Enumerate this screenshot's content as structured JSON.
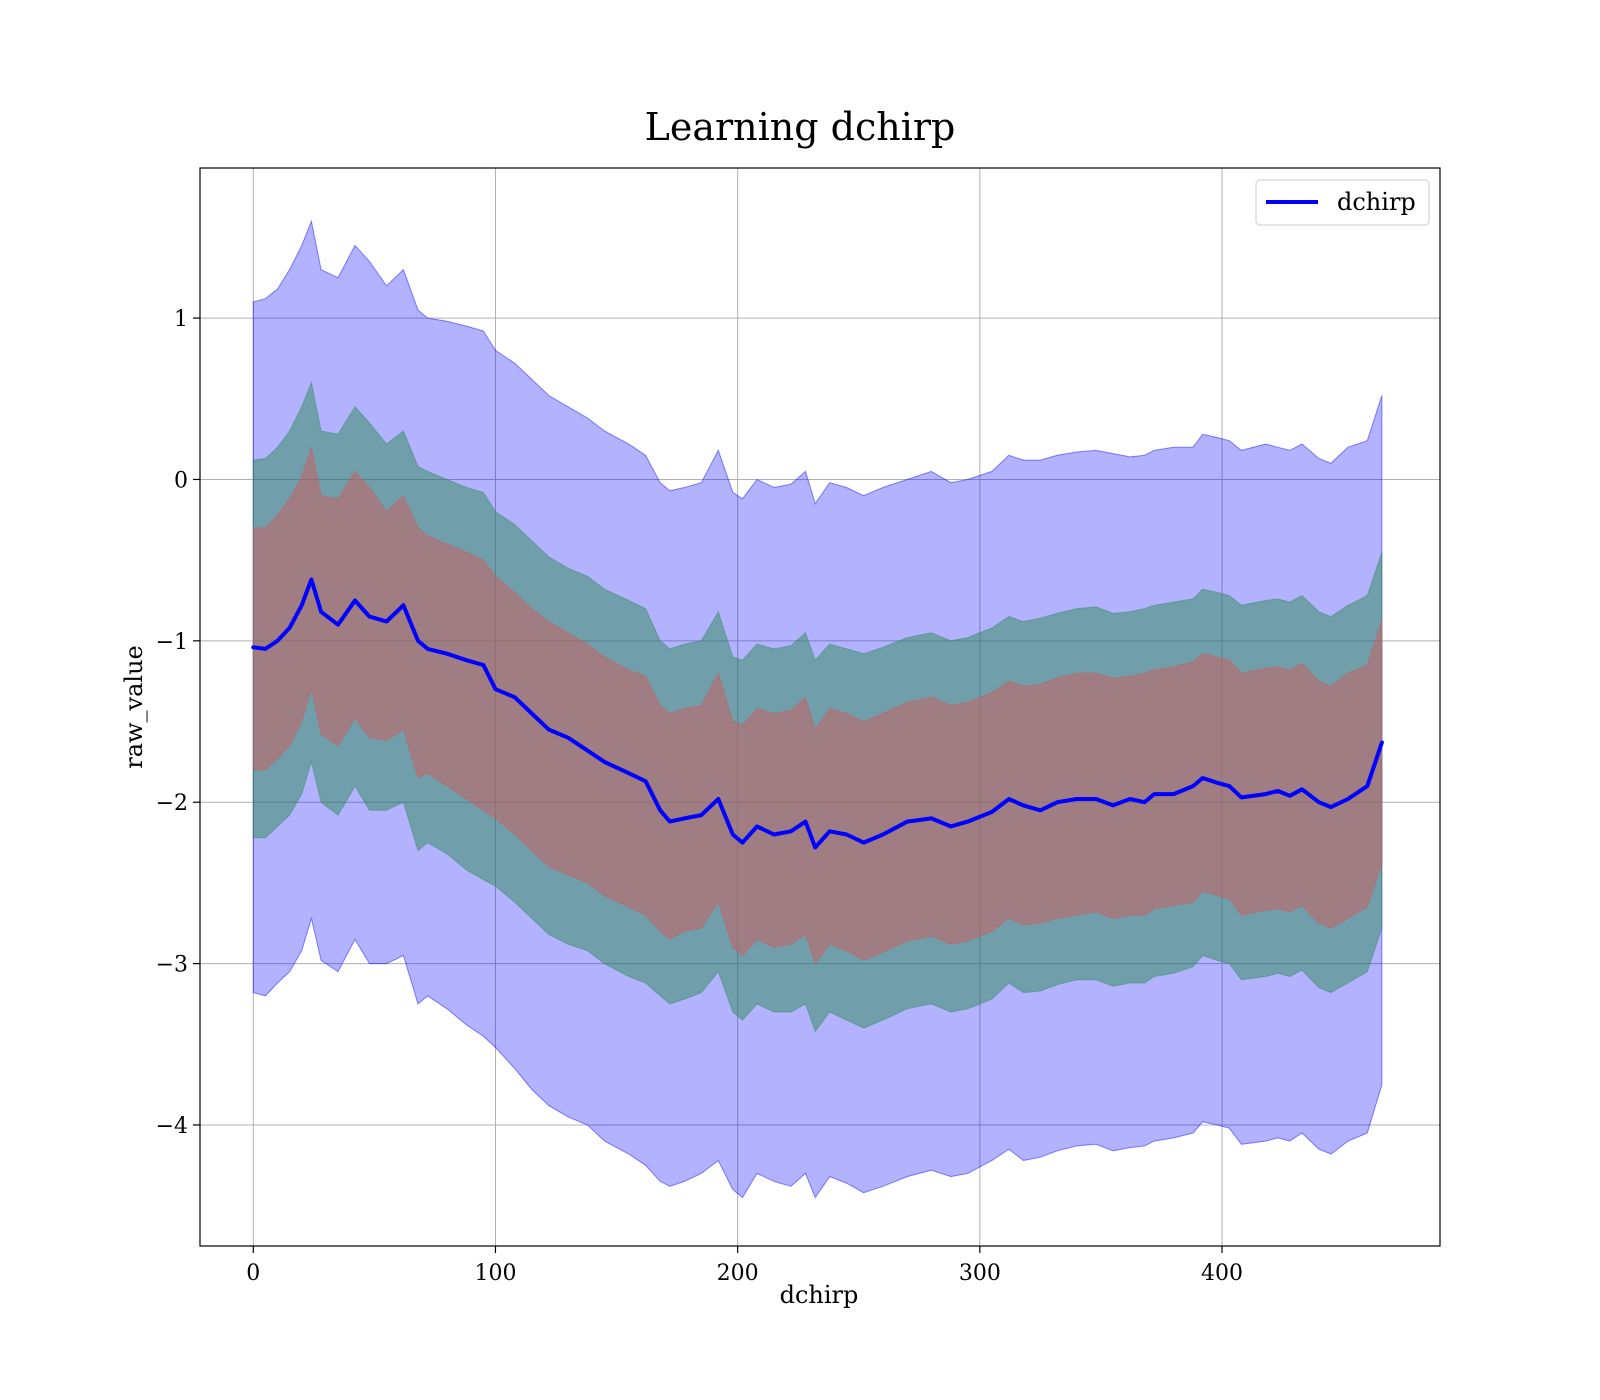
{
  "chart_data": {
    "type": "line",
    "title": "Learning dchirp",
    "xlabel": "dchirp",
    "ylabel": "raw_value",
    "xlim": [
      -22,
      490
    ],
    "ylim": [
      -4.75,
      1.93
    ],
    "grid": true,
    "legend_position": "top-right",
    "x_ticks": [
      0,
      100,
      200,
      300,
      400
    ],
    "x_tick_labels": [
      "0",
      "100",
      "200",
      "300",
      "400"
    ],
    "y_ticks": [
      1,
      0,
      -1,
      -2,
      -3,
      -4
    ],
    "y_tick_labels": [
      "1",
      "0",
      "−1",
      "−2",
      "−3",
      "−4"
    ],
    "colors": {
      "mean_line": "#0000ff",
      "band_outer": "#0000ff",
      "band_middle": "#2e8b57",
      "band_inner": "#cd5c5c"
    },
    "series": [
      {
        "name": "dchirp",
        "style": "mean line",
        "x": [
          0,
          5,
          10,
          15,
          20,
          24,
          28,
          35,
          42,
          48,
          55,
          62,
          68,
          72,
          80,
          88,
          95,
          100,
          108,
          115,
          122,
          130,
          138,
          145,
          155,
          162,
          168,
          172,
          178,
          185,
          192,
          198,
          202,
          208,
          215,
          222,
          228,
          232,
          238,
          245,
          252,
          260,
          270,
          280,
          288,
          295,
          305,
          312,
          318,
          325,
          332,
          340,
          348,
          355,
          362,
          368,
          372,
          380,
          388,
          392,
          398,
          403,
          408,
          418,
          423,
          428,
          433,
          440,
          445,
          452,
          460,
          466
        ],
        "y": [
          -1.04,
          -1.05,
          -1.0,
          -0.92,
          -0.78,
          -0.62,
          -0.82,
          -0.9,
          -0.75,
          -0.85,
          -0.88,
          -0.78,
          -1.0,
          -1.05,
          -1.08,
          -1.12,
          -1.15,
          -1.3,
          -1.35,
          -1.45,
          -1.55,
          -1.6,
          -1.68,
          -1.75,
          -1.82,
          -1.87,
          -2.05,
          -2.12,
          -2.1,
          -2.08,
          -1.98,
          -2.2,
          -2.25,
          -2.15,
          -2.2,
          -2.18,
          -2.12,
          -2.28,
          -2.18,
          -2.2,
          -2.25,
          -2.2,
          -2.12,
          -2.1,
          -2.15,
          -2.12,
          -2.06,
          -1.98,
          -2.02,
          -2.05,
          -2.0,
          -1.98,
          -1.98,
          -2.02,
          -1.98,
          -2.0,
          -1.95,
          -1.95,
          -1.9,
          -1.85,
          -1.88,
          -1.9,
          -1.97,
          -1.95,
          -1.93,
          -1.96,
          -1.92,
          -2.0,
          -2.03,
          -1.98,
          -1.9,
          -1.63
        ]
      },
      {
        "style": "band outer",
        "x": [
          0,
          5,
          10,
          15,
          20,
          24,
          28,
          35,
          42,
          48,
          55,
          62,
          68,
          72,
          80,
          88,
          95,
          100,
          108,
          115,
          122,
          130,
          138,
          145,
          155,
          162,
          168,
          172,
          178,
          185,
          192,
          198,
          202,
          208,
          215,
          222,
          228,
          232,
          238,
          245,
          252,
          260,
          270,
          280,
          288,
          295,
          305,
          312,
          318,
          325,
          332,
          340,
          348,
          355,
          362,
          368,
          372,
          380,
          388,
          392,
          398,
          403,
          408,
          418,
          423,
          428,
          433,
          440,
          445,
          452,
          460,
          466
        ],
        "upper": [
          1.1,
          1.12,
          1.18,
          1.3,
          1.45,
          1.6,
          1.3,
          1.25,
          1.45,
          1.35,
          1.2,
          1.3,
          1.05,
          1.0,
          0.98,
          0.95,
          0.92,
          0.8,
          0.72,
          0.62,
          0.52,
          0.45,
          0.38,
          0.3,
          0.22,
          0.15,
          -0.02,
          -0.07,
          -0.05,
          -0.02,
          0.18,
          -0.08,
          -0.12,
          0.0,
          -0.05,
          -0.03,
          0.05,
          -0.15,
          -0.02,
          -0.05,
          -0.1,
          -0.05,
          0.0,
          0.05,
          -0.02,
          0.0,
          0.05,
          0.15,
          0.12,
          0.12,
          0.15,
          0.17,
          0.18,
          0.16,
          0.14,
          0.15,
          0.18,
          0.2,
          0.2,
          0.28,
          0.26,
          0.24,
          0.18,
          0.22,
          0.2,
          0.18,
          0.22,
          0.13,
          0.1,
          0.2,
          0.24,
          0.52
        ],
        "lower": [
          -3.18,
          -3.2,
          -3.12,
          -3.05,
          -2.92,
          -2.72,
          -2.98,
          -3.05,
          -2.85,
          -3.0,
          -3.0,
          -2.95,
          -3.25,
          -3.2,
          -3.28,
          -3.38,
          -3.45,
          -3.52,
          -3.65,
          -3.78,
          -3.88,
          -3.95,
          -4.0,
          -4.1,
          -4.18,
          -4.25,
          -4.35,
          -4.38,
          -4.35,
          -4.3,
          -4.22,
          -4.4,
          -4.45,
          -4.3,
          -4.35,
          -4.38,
          -4.3,
          -4.45,
          -4.32,
          -4.36,
          -4.42,
          -4.38,
          -4.32,
          -4.28,
          -4.32,
          -4.3,
          -4.22,
          -4.15,
          -4.22,
          -4.2,
          -4.16,
          -4.13,
          -4.12,
          -4.16,
          -4.14,
          -4.13,
          -4.1,
          -4.08,
          -4.05,
          -3.98,
          -4.0,
          -4.02,
          -4.12,
          -4.1,
          -4.08,
          -4.1,
          -4.05,
          -4.15,
          -4.18,
          -4.1,
          -4.05,
          -3.75
        ]
      },
      {
        "style": "band middle",
        "x": [
          0,
          5,
          10,
          15,
          20,
          24,
          28,
          35,
          42,
          48,
          55,
          62,
          68,
          72,
          80,
          88,
          95,
          100,
          108,
          115,
          122,
          130,
          138,
          145,
          155,
          162,
          168,
          172,
          178,
          185,
          192,
          198,
          202,
          208,
          215,
          222,
          228,
          232,
          238,
          245,
          252,
          260,
          270,
          280,
          288,
          295,
          305,
          312,
          318,
          325,
          332,
          340,
          348,
          355,
          362,
          368,
          372,
          380,
          388,
          392,
          398,
          403,
          408,
          418,
          423,
          428,
          433,
          440,
          445,
          452,
          460,
          466
        ],
        "upper": [
          0.12,
          0.13,
          0.2,
          0.3,
          0.45,
          0.6,
          0.3,
          0.28,
          0.45,
          0.35,
          0.22,
          0.3,
          0.08,
          0.05,
          0.0,
          -0.05,
          -0.08,
          -0.2,
          -0.28,
          -0.38,
          -0.48,
          -0.55,
          -0.6,
          -0.68,
          -0.75,
          -0.8,
          -1.0,
          -1.05,
          -1.02,
          -1.0,
          -0.82,
          -1.1,
          -1.12,
          -1.02,
          -1.05,
          -1.03,
          -0.95,
          -1.12,
          -1.02,
          -1.05,
          -1.08,
          -1.04,
          -0.98,
          -0.95,
          -1.0,
          -0.98,
          -0.92,
          -0.85,
          -0.88,
          -0.86,
          -0.83,
          -0.8,
          -0.79,
          -0.83,
          -0.82,
          -0.8,
          -0.78,
          -0.76,
          -0.74,
          -0.68,
          -0.7,
          -0.72,
          -0.78,
          -0.75,
          -0.74,
          -0.76,
          -0.72,
          -0.82,
          -0.85,
          -0.78,
          -0.72,
          -0.45
        ],
        "lower": [
          -2.22,
          -2.22,
          -2.15,
          -2.08,
          -1.95,
          -1.75,
          -2.0,
          -2.08,
          -1.9,
          -2.05,
          -2.05,
          -2.0,
          -2.3,
          -2.25,
          -2.32,
          -2.42,
          -2.48,
          -2.52,
          -2.62,
          -2.72,
          -2.82,
          -2.88,
          -2.92,
          -3.0,
          -3.08,
          -3.12,
          -3.2,
          -3.25,
          -3.22,
          -3.18,
          -3.05,
          -3.3,
          -3.35,
          -3.25,
          -3.3,
          -3.3,
          -3.25,
          -3.42,
          -3.3,
          -3.35,
          -3.4,
          -3.35,
          -3.28,
          -3.25,
          -3.3,
          -3.28,
          -3.22,
          -3.12,
          -3.18,
          -3.17,
          -3.13,
          -3.1,
          -3.1,
          -3.14,
          -3.12,
          -3.12,
          -3.08,
          -3.06,
          -3.02,
          -2.95,
          -2.98,
          -3.0,
          -3.1,
          -3.08,
          -3.06,
          -3.08,
          -3.04,
          -3.15,
          -3.18,
          -3.12,
          -3.05,
          -2.78
        ]
      },
      {
        "style": "band inner",
        "x": [
          0,
          5,
          10,
          15,
          20,
          24,
          28,
          35,
          42,
          48,
          55,
          62,
          68,
          72,
          80,
          88,
          95,
          100,
          108,
          115,
          122,
          130,
          138,
          145,
          155,
          162,
          168,
          172,
          178,
          185,
          192,
          198,
          202,
          208,
          215,
          222,
          228,
          232,
          238,
          245,
          252,
          260,
          270,
          280,
          288,
          295,
          305,
          312,
          318,
          325,
          332,
          340,
          348,
          355,
          362,
          368,
          372,
          380,
          388,
          392,
          398,
          403,
          408,
          418,
          423,
          428,
          433,
          440,
          445,
          452,
          460,
          466
        ],
        "upper": [
          -0.3,
          -0.3,
          -0.22,
          -0.12,
          0.02,
          0.2,
          -0.1,
          -0.12,
          0.05,
          -0.05,
          -0.2,
          -0.1,
          -0.3,
          -0.35,
          -0.4,
          -0.45,
          -0.5,
          -0.6,
          -0.7,
          -0.8,
          -0.88,
          -0.95,
          -1.02,
          -1.1,
          -1.18,
          -1.22,
          -1.4,
          -1.45,
          -1.42,
          -1.4,
          -1.2,
          -1.5,
          -1.52,
          -1.42,
          -1.45,
          -1.43,
          -1.35,
          -1.55,
          -1.42,
          -1.45,
          -1.5,
          -1.45,
          -1.38,
          -1.35,
          -1.4,
          -1.38,
          -1.32,
          -1.25,
          -1.28,
          -1.27,
          -1.23,
          -1.2,
          -1.2,
          -1.23,
          -1.22,
          -1.2,
          -1.18,
          -1.16,
          -1.13,
          -1.08,
          -1.1,
          -1.12,
          -1.2,
          -1.17,
          -1.16,
          -1.18,
          -1.14,
          -1.25,
          -1.28,
          -1.2,
          -1.15,
          -0.87
        ],
        "lower": [
          -1.8,
          -1.8,
          -1.73,
          -1.65,
          -1.5,
          -1.3,
          -1.58,
          -1.65,
          -1.48,
          -1.6,
          -1.62,
          -1.55,
          -1.85,
          -1.82,
          -1.9,
          -1.98,
          -2.05,
          -2.1,
          -2.2,
          -2.3,
          -2.4,
          -2.45,
          -2.5,
          -2.58,
          -2.65,
          -2.7,
          -2.8,
          -2.85,
          -2.8,
          -2.78,
          -2.62,
          -2.9,
          -2.95,
          -2.85,
          -2.9,
          -2.88,
          -2.82,
          -3.0,
          -2.88,
          -2.92,
          -2.98,
          -2.93,
          -2.86,
          -2.83,
          -2.88,
          -2.86,
          -2.8,
          -2.72,
          -2.76,
          -2.75,
          -2.72,
          -2.7,
          -2.68,
          -2.72,
          -2.7,
          -2.7,
          -2.66,
          -2.64,
          -2.62,
          -2.55,
          -2.58,
          -2.6,
          -2.7,
          -2.67,
          -2.66,
          -2.68,
          -2.64,
          -2.75,
          -2.78,
          -2.72,
          -2.65,
          -2.38
        ]
      }
    ]
  }
}
